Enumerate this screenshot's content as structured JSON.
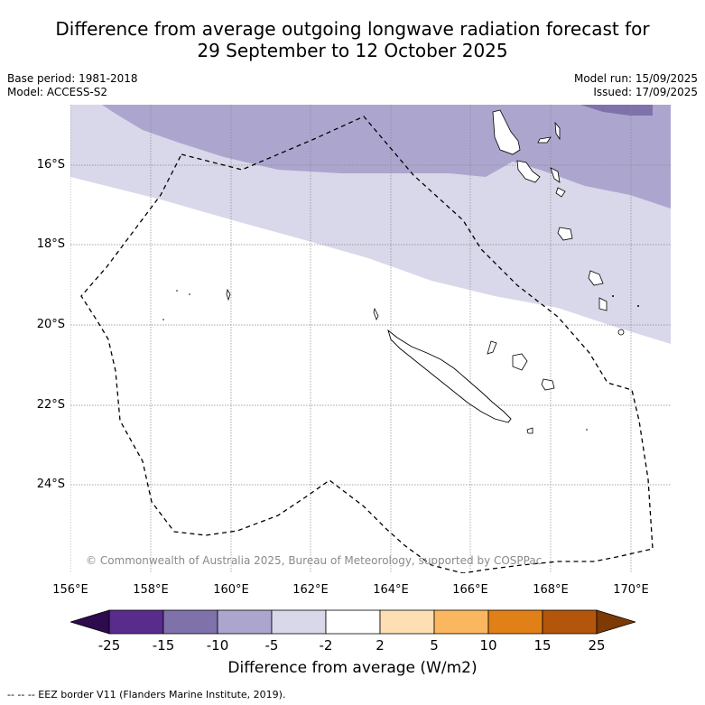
{
  "title_line1": "Difference from average outgoing longwave radiation forecast for",
  "title_line2": "29 September to 12 October 2025",
  "meta_left": {
    "base_period": "Base period: 1981-2018",
    "model": "Model: ACCESS-S2"
  },
  "meta_right": {
    "model_run": "Model run: 15/09/2025",
    "issued": "Issued: 17/09/2025"
  },
  "lat_labels": [
    "16°S",
    "18°S",
    "20°S",
    "22°S",
    "24°S"
  ],
  "lon_labels": [
    "156°E",
    "158°E",
    "160°E",
    "162°E",
    "164°E",
    "166°E",
    "168°E",
    "170°E"
  ],
  "copyright": "© Commonwealth of Australia 2025, Bureau of Meteorology, supported by COSPPac",
  "colorbar": {
    "ticks": [
      "-25",
      "-15",
      "-10",
      "-5",
      "-2",
      "2",
      "5",
      "10",
      "15",
      "25"
    ],
    "colors": [
      "#592b8c",
      "#7f72ab",
      "#aca6cf",
      "#d8d8ea",
      "#ffffff",
      "#fddfb3",
      "#fbb660",
      "#e08017",
      "#b3560b"
    ],
    "low_extend": "#2e0a4e",
    "high_extend": "#7d3a05",
    "label": "Difference from average (W/m2)"
  },
  "footer": "--  --  -- EEZ border V11 (Flanders Marine Institute, 2019)."
}
